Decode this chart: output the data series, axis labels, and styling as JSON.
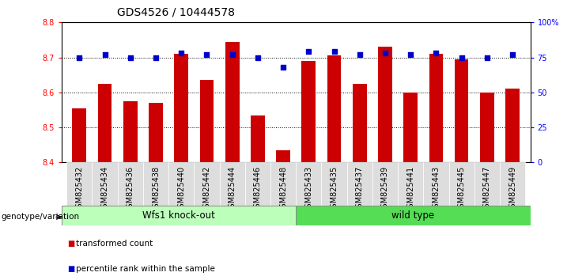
{
  "title": "GDS4526 / 10444578",
  "samples": [
    "GSM825432",
    "GSM825434",
    "GSM825436",
    "GSM825438",
    "GSM825440",
    "GSM825442",
    "GSM825444",
    "GSM825446",
    "GSM825448",
    "GSM825433",
    "GSM825435",
    "GSM825437",
    "GSM825439",
    "GSM825441",
    "GSM825443",
    "GSM825445",
    "GSM825447",
    "GSM825449"
  ],
  "bar_values": [
    8.555,
    8.625,
    8.575,
    8.57,
    8.71,
    8.635,
    8.745,
    8.535,
    8.435,
    8.69,
    8.705,
    8.625,
    8.73,
    8.6,
    8.71,
    8.695,
    8.6,
    8.61
  ],
  "percentile_values": [
    75,
    77,
    75,
    75,
    78,
    77,
    77,
    75,
    68,
    79,
    79,
    77,
    78,
    77,
    78,
    75,
    75,
    77
  ],
  "bar_color": "#cc0000",
  "dot_color": "#0000cc",
  "ylim": [
    8.4,
    8.8
  ],
  "yticks_left": [
    8.4,
    8.5,
    8.6,
    8.7,
    8.8
  ],
  "yticks_right": [
    0,
    25,
    50,
    75,
    100
  ],
  "ytick_labels_right": [
    "0",
    "25",
    "50",
    "75",
    "100%"
  ],
  "grid_values": [
    8.5,
    8.6,
    8.7
  ],
  "group1_label": "Wfs1 knock-out",
  "group2_label": "wild type",
  "group1_count": 9,
  "group2_count": 9,
  "group1_color": "#bbffbb",
  "group2_color": "#55dd55",
  "genotype_label": "genotype/variation",
  "legend_bar_label": "transformed count",
  "legend_dot_label": "percentile rank within the sample",
  "title_fontsize": 10,
  "tick_fontsize": 7,
  "label_fontsize": 8,
  "xtick_bg_color": "#dddddd"
}
